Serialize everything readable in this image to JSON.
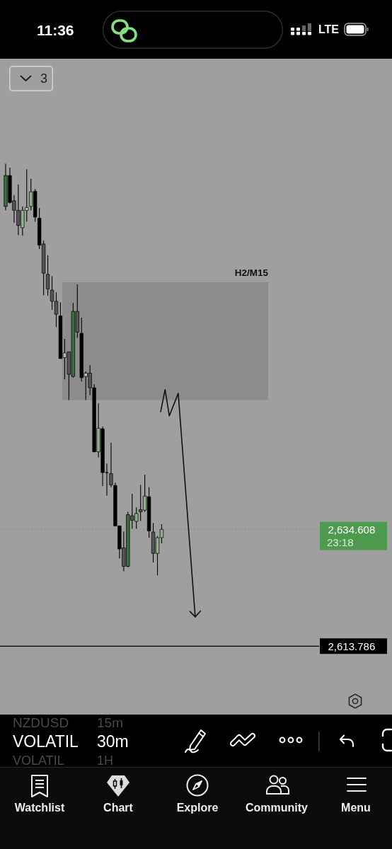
{
  "chart_data": {
    "type": "candlestick",
    "categories": [
      null,
      null,
      null,
      null,
      null,
      null,
      null,
      null,
      null,
      null,
      null,
      null,
      null,
      null,
      null,
      null,
      null,
      null,
      null,
      null,
      null,
      null,
      null,
      null,
      null,
      null,
      null,
      null,
      null,
      null,
      null,
      null,
      null,
      null,
      null,
      null,
      null,
      null,
      null,
      null,
      null,
      null,
      null,
      null,
      null,
      null,
      null,
      null,
      null,
      null,
      null,
      null,
      null,
      null,
      null,
      null,
      null,
      null,
      null,
      null,
      null,
      null,
      null,
      null,
      null,
      null,
      null,
      null,
      null,
      null,
      null,
      null,
      null,
      null
    ],
    "ohlc": [
      [
        2692.1,
        2699.7,
        2691.4,
        2697.6
      ],
      [
        2697.6,
        2699.0,
        2692.6,
        2692.8
      ],
      [
        2693.1,
        2694.1,
        2689.2,
        2691.4
      ],
      [
        2691.4,
        2696.0,
        2687.0,
        2688.7
      ],
      [
        2688.3,
        2692.1,
        2686.9,
        2691.4
      ],
      [
        2691.4,
        2698.7,
        2689.4,
        2691.9
      ],
      [
        2692.1,
        2697.0,
        2691.4,
        2694.7
      ],
      [
        2694.8,
        2695.2,
        2689.4,
        2690.2
      ],
      [
        2690.0,
        2691.8,
        2684.5,
        2685.2
      ],
      [
        2685.4,
        2686.0,
        2676.3,
        2680.2
      ],
      [
        2680.0,
        2683.4,
        2676.2,
        2677.4
      ],
      [
        2677.2,
        2679.7,
        2673.7,
        2675.2
      ],
      [
        2675.2,
        2676.8,
        2670.6,
        2672.9
      ],
      [
        2672.6,
        2675.0,
        2665.0,
        2665.0
      ],
      [
        2665.2,
        2668.5,
        2661.3,
        2666.0
      ],
      [
        2666.2,
        2666.2,
        2657.6,
        2662.2
      ],
      [
        2661.8,
        2674.9,
        2661.6,
        2673.4
      ],
      [
        2673.4,
        2678.2,
        2668.7,
        2669.7
      ],
      [
        2669.5,
        2672.3,
        2660.9,
        2661.6
      ],
      [
        2661.8,
        2662.7,
        2657.6,
        2662.4
      ],
      [
        2662.4,
        2663.8,
        2658.5,
        2659.8
      ],
      [
        2659.8,
        2660.4,
        2648.3,
        2648.4
      ],
      [
        2648.4,
        2657.0,
        2647.4,
        2652.6
      ],
      [
        2652.5,
        2652.9,
        2642.3,
        2644.7
      ],
      [
        2644.7,
        2646.3,
        2640.6,
        2644.7
      ],
      [
        2644.5,
        2650.0,
        2642.1,
        2642.5
      ],
      [
        2642.4,
        2642.9,
        2635.2,
        2635.2
      ],
      [
        2635.2,
        2635.2,
        2629.4,
        2631.1
      ],
      [
        2631.3,
        2634.2,
        2627.1,
        2628.0
      ],
      [
        2628.0,
        2637.7,
        2627.8,
        2637.2
      ],
      [
        2637.0,
        2640.9,
        2634.7,
        2636.2
      ],
      [
        2636.0,
        2638.5,
        2634.7,
        2637.4
      ],
      [
        2638.1,
        2642.5,
        2636.1,
        2637.7
      ],
      [
        2638.0,
        2644.3,
        2637.7,
        2640.5
      ],
      [
        2640.4,
        2642.1,
        2633.1,
        2634.3
      ],
      [
        2634.1,
        2635.7,
        2628.7,
        2630.3
      ],
      [
        2630.3,
        2633.4,
        2626.4,
        2633.1
      ],
      [
        2633.1,
        2635.5,
        2632.1,
        2634.6
      ],
      null,
      null,
      null,
      null,
      null,
      null,
      null,
      null,
      null,
      null,
      null,
      null,
      null,
      null,
      null,
      null,
      null,
      null,
      null,
      null,
      null,
      null,
      null,
      null,
      null,
      null,
      null,
      null,
      null,
      null,
      null,
      null,
      null,
      null,
      null,
      null
    ],
    "colors": [
      "#3d6d3d",
      "#000000",
      "#555555",
      "#555555",
      "#8db08a",
      "#b7bfb7",
      "#8db08a",
      "#000000",
      "#000000",
      "#555555",
      "#555555",
      "#555555",
      "#555555",
      "#000000",
      "#b7bfb7",
      "#555555",
      "#3d6d3d",
      "#555555",
      "#000000",
      "#b7bfb7",
      "#555555",
      "#000000",
      "#8db08a",
      "#000000",
      "#000000",
      "#555555",
      "#000000",
      "#000000",
      "#555555",
      "#3d6d3d",
      "#555555",
      "#8db08a",
      "#555555",
      "#8db08a",
      "#000000",
      "#555555",
      "#8db08a",
      "#8db08a",
      null,
      null,
      null,
      null,
      null,
      null,
      null,
      null,
      null,
      null,
      null,
      null,
      null,
      null,
      null,
      null,
      null,
      null,
      null,
      null,
      null,
      null,
      null,
      null,
      null,
      null,
      null,
      null,
      null,
      null,
      null,
      null,
      null,
      null,
      null,
      null
    ],
    "ylim": [
      2601.6,
      2718.4
    ],
    "yticks": [
      {
        "value": 2634.608,
        "label": "2,634.608"
      },
      {
        "value": 2613.786,
        "label": "2,613.786"
      }
    ],
    "tick_labels": "y",
    "ref_lines": [
      {
        "axis": "y",
        "value": 2634.608,
        "color": "#4e9a4e",
        "line_style": "dotted"
      },
      {
        "axis": "y",
        "value": 2613.786,
        "color": "#000000",
        "line_style": "solid"
      }
    ],
    "bands": [
      {
        "axis": "y",
        "from": 2657.6,
        "to": 2678.6,
        "label": "H2/M15",
        "color": "#8c8c8c"
      }
    ],
    "annotations": [
      "23:18",
      "11:36",
      "LTE",
      "3",
      "NZDUSD",
      "15m",
      "VOLATIL",
      "30m",
      "VOLATIL",
      "1H",
      "Watchlist",
      "Chart",
      "Explore",
      "Community",
      "Menu"
    ]
  }
}
